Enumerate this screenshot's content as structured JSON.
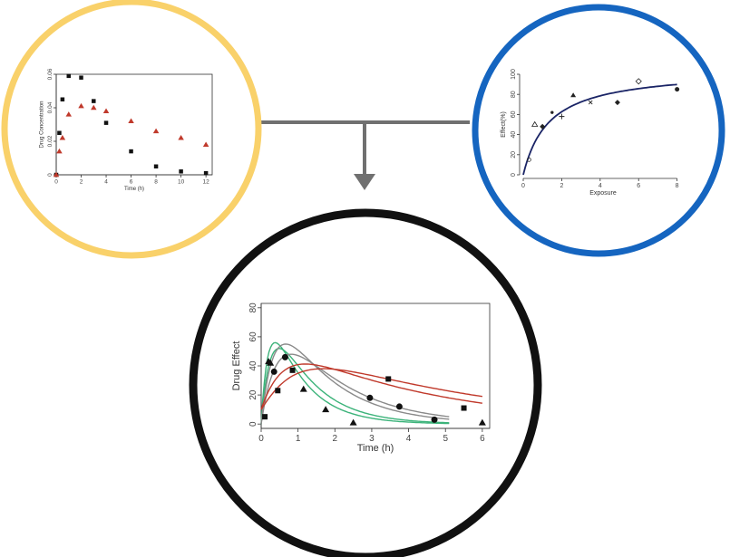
{
  "colors": {
    "ring_pk": "#f9d16a",
    "ring_pd": "#1565c0",
    "ring_pkpd": "#111111",
    "connector": "#707070",
    "red": "#c0392b",
    "green": "#3cb37a",
    "gray": "#8a8a8a",
    "navy": "#1a2466"
  },
  "chart_data": [
    {
      "type": "scatter",
      "title": "",
      "xlabel": "Time (h)",
      "ylabel": "Drug Concentration",
      "xlim": [
        0,
        12.5
      ],
      "ylim": [
        0,
        0.06
      ],
      "xticks": [
        0,
        2,
        4,
        6,
        8,
        10,
        12
      ],
      "yticks": [
        0,
        0.02,
        0.04,
        0.06
      ],
      "ytick_labels": [
        "0",
        "0.02",
        "0.04",
        "0.06"
      ],
      "grid": false,
      "series": [
        {
          "marker": "square",
          "color": "#111111",
          "x": [
            0,
            0.25,
            0.5,
            1,
            2,
            3,
            4,
            6,
            8,
            10,
            12
          ],
          "y": [
            0,
            0.025,
            0.045,
            0.059,
            0.058,
            0.044,
            0.031,
            0.014,
            0.005,
            0.002,
            0.001
          ]
        },
        {
          "marker": "triangle",
          "color": "#c0392b",
          "x": [
            0,
            0.25,
            0.5,
            1,
            2,
            3,
            4,
            6,
            8,
            10,
            12
          ],
          "y": [
            0,
            0.014,
            0.022,
            0.036,
            0.041,
            0.04,
            0.038,
            0.032,
            0.026,
            0.022,
            0.018
          ]
        }
      ]
    },
    {
      "type": "scatter",
      "title": "",
      "xlabel": "Exposure",
      "ylabel": "Effect(%)",
      "xlim": [
        0,
        8.3
      ],
      "ylim": [
        0,
        100
      ],
      "xticks": [
        0,
        2,
        4,
        6,
        8
      ],
      "yticks": [
        0,
        20,
        40,
        60,
        80,
        100
      ],
      "grid": false,
      "points": [
        {
          "x": 0.3,
          "y": 15,
          "marker": "circle-open"
        },
        {
          "x": 0.6,
          "y": 50,
          "marker": "triangle-open"
        },
        {
          "x": 1.0,
          "y": 48,
          "marker": "diamond"
        },
        {
          "x": 1.5,
          "y": 62,
          "marker": "dot"
        },
        {
          "x": 2.0,
          "y": 58,
          "marker": "plus"
        },
        {
          "x": 2.6,
          "y": 79,
          "marker": "triangle"
        },
        {
          "x": 3.5,
          "y": 72,
          "marker": "x"
        },
        {
          "x": 4.9,
          "y": 72,
          "marker": "diamond"
        },
        {
          "x": 6.0,
          "y": 93,
          "marker": "diamond-open"
        },
        {
          "x": 8.0,
          "y": 85,
          "marker": "circle"
        }
      ],
      "fit": {
        "model": "Emax",
        "emax": 105,
        "ec50": 1.35
      }
    },
    {
      "type": "line",
      "title": "",
      "xlabel": "Time (h)",
      "ylabel": "Drug Effect",
      "xlim": [
        0,
        6.2
      ],
      "ylim": [
        -3,
        83
      ],
      "xticks": [
        0,
        1,
        2,
        3,
        4,
        5,
        6
      ],
      "yticks": [
        0,
        20,
        40,
        60,
        80
      ],
      "grid": false,
      "series": [
        {
          "marker": "square",
          "x": [
            0.1,
            0.45,
            0.85,
            3.45,
            5.5
          ],
          "y": [
            5,
            23,
            37,
            31,
            11
          ]
        },
        {
          "marker": "triangle",
          "x": [
            0.2,
            0.25,
            1.15,
            1.75,
            2.5,
            6.0
          ],
          "y": [
            43,
            42,
            24,
            10,
            1,
            1
          ]
        },
        {
          "marker": "circle",
          "x": [
            0.35,
            0.65,
            2.95,
            3.75,
            4.7
          ],
          "y": [
            36,
            46,
            18,
            12,
            3
          ]
        }
      ],
      "curves": [
        {
          "color": "#3cb37a",
          "k_elim": 1.1,
          "t_max": 0.4,
          "peak": 56
        },
        {
          "color": "#3cb37a",
          "k_elim": 0.95,
          "t_max": 0.55,
          "peak": 52
        },
        {
          "color": "#8a8a8a",
          "k_elim": 0.7,
          "t_max": 0.75,
          "peak": 55
        },
        {
          "color": "#8a8a8a",
          "k_elim": 0.6,
          "t_max": 0.95,
          "peak": 48
        },
        {
          "color": "#c0392b",
          "k_elim": 0.25,
          "t_max": 1.1,
          "peak": 41
        },
        {
          "color": "#c0392b",
          "k_elim": 0.2,
          "t_max": 1.6,
          "peak": 38
        }
      ]
    }
  ]
}
